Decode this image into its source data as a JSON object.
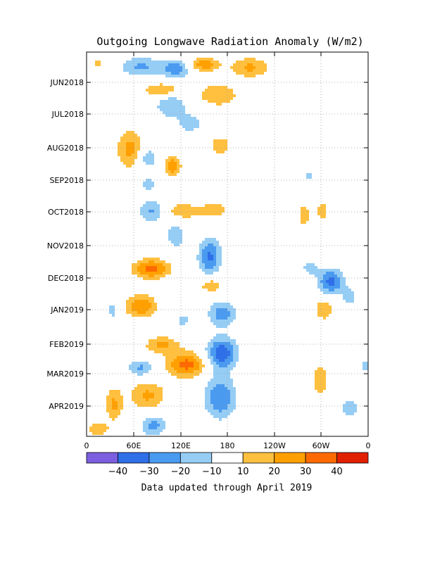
{
  "chart_data": {
    "type": "heatmap",
    "title": "Outgoing Longwave Radiation Anomaly (W/m2)",
    "footer": "Data updated through April 2019",
    "xlabel": "",
    "ylabel": "",
    "x_ticks": [
      "0",
      "60E",
      "120E",
      "180",
      "120W",
      "60W",
      "0"
    ],
    "y_ticks": [
      "JUN2018",
      "JUL2018",
      "AUG2018",
      "SEP2018",
      "OCT2018",
      "NOV2018",
      "DEC2018",
      "JAN2019",
      "FEB2019",
      "MAR2019",
      "APR2019"
    ],
    "colorbar": {
      "labels": [
        "-40",
        "-30",
        "-20",
        "-10",
        "10",
        "20",
        "30",
        "40"
      ],
      "colors": [
        "#7b5fe0",
        "#2f6fe8",
        "#4a9af0",
        "#96cdf5",
        "#ffffff",
        "#ffc040",
        "#ffa000",
        "#ff6a00",
        "#e02000"
      ]
    },
    "grid": true
  }
}
